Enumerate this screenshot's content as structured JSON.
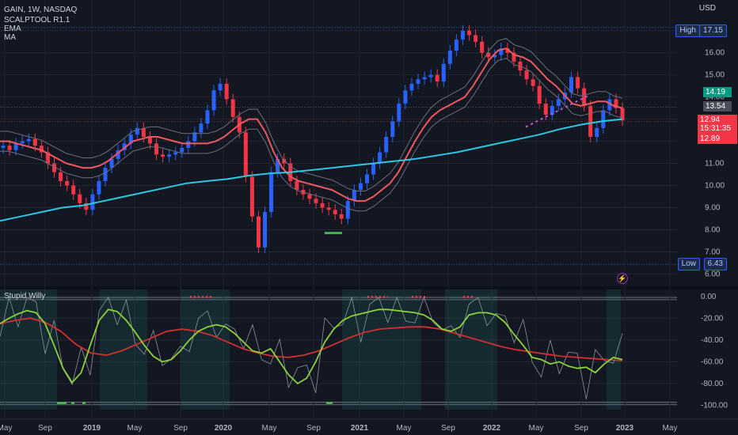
{
  "symbol_line": "GAIN, 1W, NASDAQ",
  "indicators": [
    "SCALPTOOL R1.1",
    "EMA",
    "MA"
  ],
  "lower_pane_title": "Stupid Willy",
  "currency": "USD",
  "high_label": "High",
  "high_value": "17.15",
  "low_label": "Low",
  "low_value": "6.43",
  "price_tags": {
    "green": "14.19",
    "gray": "13.54",
    "current": "12.94",
    "countdown": "15:31:35",
    "red": "12.89"
  },
  "colors": {
    "background": "#131722",
    "up": "#2962ff",
    "down": "#f23645",
    "ema": "#f0595f",
    "ma": "#2dc6de",
    "band": "#6b6f7a",
    "signal_green": "#4caf50",
    "willy_green": "#8bd13a",
    "willy_red": "#d32f2f"
  },
  "chart_data": [
    {
      "type": "candlestick",
      "title": "GAIN, 1W, NASDAQ",
      "ylabel": "USD",
      "ylim": [
        5.8,
        17.6
      ],
      "x_ticks": [
        "May",
        "Sep",
        "2019",
        "May",
        "Sep",
        "2020",
        "May",
        "Sep",
        "2021",
        "May",
        "Sep",
        "2022",
        "May",
        "Sep",
        "2023",
        "May"
      ],
      "y_ticks": [
        "6.00",
        "7.00",
        "8.00",
        "9.00",
        "10.00",
        "11.00",
        "12.00",
        "13.00",
        "14.00",
        "15.00",
        "16.00",
        "17.00"
      ],
      "close_series": [
        11.8,
        11.6,
        11.9,
        12.0,
        12.1,
        11.8,
        11.5,
        11.0,
        10.6,
        10.2,
        10.0,
        9.6,
        9.2,
        8.9,
        9.6,
        10.2,
        10.8,
        11.2,
        11.6,
        11.9,
        12.3,
        12.6,
        12.2,
        11.9,
        11.4,
        11.3,
        11.4,
        11.5,
        11.7,
        12.0,
        12.4,
        12.8,
        13.4,
        14.3,
        14.6,
        13.9,
        13.1,
        12.4,
        10.4,
        8.6,
        7.2,
        8.8,
        10.6,
        11.2,
        11.0,
        10.2,
        9.8,
        9.6,
        9.4,
        9.2,
        9.0,
        8.9,
        8.7,
        8.5,
        9.3,
        9.8,
        10.1,
        10.5,
        11.0,
        11.5,
        12.2,
        12.9,
        13.7,
        14.3,
        14.6,
        14.8,
        14.9,
        15.0,
        14.7,
        15.5,
        16.1,
        16.6,
        17.0,
        16.8,
        16.5,
        16.0,
        15.8,
        15.9,
        16.2,
        16.0,
        15.6,
        15.2,
        14.8,
        14.5,
        13.7,
        13.2,
        13.6,
        13.9,
        14.2,
        14.9,
        14.4,
        13.6,
        12.2,
        12.6,
        13.4,
        13.9,
        13.5,
        12.94
      ],
      "ema_series": [
        12.0,
        12.0,
        11.9,
        11.8,
        11.7,
        11.6,
        11.4,
        11.2,
        11.0,
        10.9,
        10.8,
        10.8,
        10.9,
        11.1,
        11.4,
        11.7,
        12.0,
        12.1,
        12.2,
        12.2,
        12.1,
        12.0,
        11.9,
        11.9,
        11.9,
        11.9,
        12.0,
        12.2,
        12.5,
        12.8,
        13.0,
        13.0,
        12.4,
        11.5,
        10.8,
        10.4,
        10.2,
        10.1,
        10.0,
        9.9,
        9.8,
        9.6,
        9.4,
        9.3,
        9.3,
        9.5,
        9.8,
        10.1,
        10.6,
        11.3,
        12.0,
        12.6,
        13.1,
        13.4,
        13.6,
        13.8,
        14.0,
        14.5,
        15.1,
        15.7,
        16.1,
        16.2,
        15.9,
        15.8,
        15.6,
        15.2,
        14.8,
        14.5,
        14.1,
        13.7,
        13.6,
        13.7,
        13.8,
        13.8,
        13.6,
        13.5
      ],
      "ma_series": [
        8.4,
        8.6,
        8.8,
        9.0,
        9.1,
        9.3,
        9.5,
        9.7,
        9.9,
        10.1,
        10.2,
        10.3,
        10.45,
        10.55,
        10.6,
        10.7,
        10.8,
        10.9,
        11.0,
        11.1,
        11.2,
        11.35,
        11.5,
        11.7,
        11.9,
        12.1,
        12.3,
        12.55,
        12.75,
        12.9,
        13.0
      ]
    },
    {
      "type": "line",
      "title": "Stupid Willy",
      "ylim": [
        -104,
        2
      ],
      "y_ticks": [
        "0.00",
        "-20.00",
        "-40.00",
        "-60.00",
        "-80.00",
        "-100.00"
      ],
      "willy_series": [
        -25,
        -20,
        -16,
        -13,
        -15,
        -25,
        -45,
        -66,
        -79,
        -70,
        -45,
        -22,
        -12,
        -14,
        -22,
        -33,
        -45,
        -55,
        -60,
        -58,
        -50,
        -40,
        -32,
        -28,
        -26,
        -28,
        -34,
        -42,
        -50,
        -52,
        -48,
        -60,
        -72,
        -80,
        -75,
        -60,
        -42,
        -30,
        -22,
        -18,
        -16,
        -14,
        -12,
        -12,
        -13,
        -14,
        -15,
        -17,
        -22,
        -30,
        -32,
        -28,
        -17,
        -15,
        -15,
        -17,
        -24,
        -35,
        -45,
        -56,
        -58,
        -62,
        -60,
        -64,
        -66,
        -65,
        -70,
        -62,
        -56,
        -58
      ],
      "signal_series": [
        -25,
        -22,
        -20,
        -24,
        -32,
        -44,
        -52,
        -54,
        -50,
        -44,
        -38,
        -32,
        -30,
        -32,
        -36,
        -42,
        -48,
        -52,
        -55,
        -56,
        -54,
        -50,
        -44,
        -38,
        -33,
        -30,
        -29,
        -28,
        -28,
        -30,
        -34,
        -38,
        -42,
        -46,
        -49,
        -51,
        -53,
        -55,
        -56,
        -57,
        -58,
        -59
      ]
    }
  ]
}
